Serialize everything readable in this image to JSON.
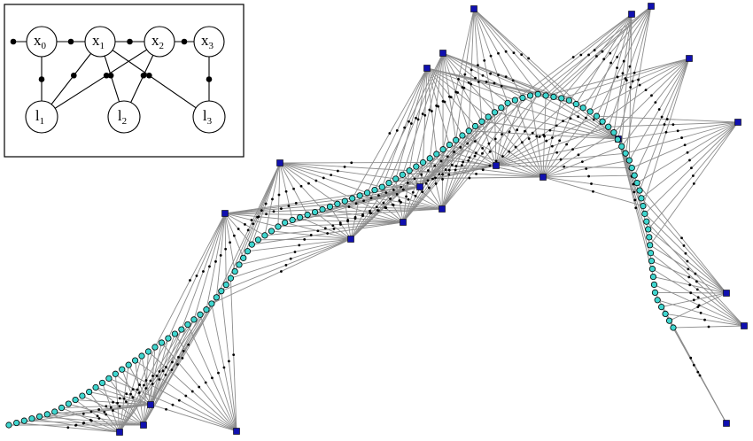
{
  "inset": {
    "nodes": [
      {
        "label": "x",
        "subscript": "0"
      },
      {
        "label": "x",
        "subscript": "1"
      },
      {
        "label": "x",
        "subscript": "2"
      },
      {
        "label": "x",
        "subscript": "3"
      },
      {
        "label": "l",
        "subscript": "1"
      },
      {
        "label": "l",
        "subscript": "2"
      },
      {
        "label": "l",
        "subscript": "3"
      }
    ]
  }
}
